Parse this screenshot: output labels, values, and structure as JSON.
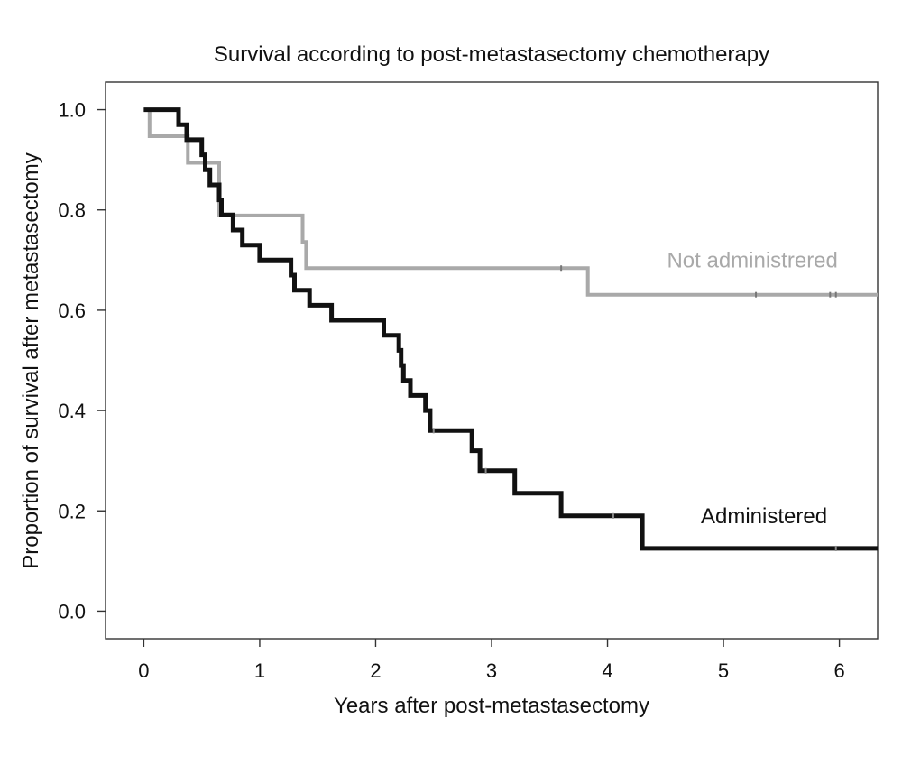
{
  "chart_data": {
    "type": "line",
    "title": "Survival according to post-metastasectomy chemotherapy",
    "xlabel": "Years after post-metastasectomy",
    "ylabel": "Proportion of survival after metastasectomy",
    "xlim": [
      -0.33,
      6.33
    ],
    "ylim": [
      -0.055,
      1.055
    ],
    "x_ticks": [
      0,
      1,
      2,
      3,
      4,
      5,
      6
    ],
    "y_ticks": [
      0.0,
      0.2,
      0.4,
      0.6,
      0.8,
      1.0
    ],
    "x_tick_labels": [
      "0",
      "1",
      "2",
      "3",
      "4",
      "5",
      "6"
    ],
    "y_tick_labels": [
      "0.0",
      "0.2",
      "0.4",
      "0.6",
      "0.8",
      "1.0"
    ],
    "grid": false,
    "series": [
      {
        "name": "Not administrered",
        "color": "#a9a9a9",
        "label_at": [
          5.25,
          0.685
        ],
        "points": [
          [
            0.0,
            1.0
          ],
          [
            0.05,
            1.0
          ],
          [
            0.05,
            0.947
          ],
          [
            0.38,
            0.947
          ],
          [
            0.38,
            0.894
          ],
          [
            0.52,
            0.894
          ],
          [
            0.52,
            0.894
          ],
          [
            0.65,
            0.894
          ],
          [
            0.65,
            0.789
          ],
          [
            1.37,
            0.789
          ],
          [
            1.37,
            0.736
          ],
          [
            1.4,
            0.736
          ],
          [
            1.4,
            0.684
          ],
          [
            3.83,
            0.684
          ],
          [
            3.83,
            0.631
          ],
          [
            6.33,
            0.631
          ]
        ],
        "censored": [
          [
            3.6,
            0.684
          ],
          [
            5.28,
            0.631
          ],
          [
            5.92,
            0.631
          ],
          [
            5.97,
            0.631
          ]
        ]
      },
      {
        "name": "Administered",
        "color": "#111111",
        "label_at": [
          5.35,
          0.175
        ],
        "points": [
          [
            0.0,
            1.0
          ],
          [
            0.3,
            1.0
          ],
          [
            0.3,
            0.97
          ],
          [
            0.37,
            0.97
          ],
          [
            0.37,
            0.94
          ],
          [
            0.5,
            0.94
          ],
          [
            0.5,
            0.91
          ],
          [
            0.53,
            0.91
          ],
          [
            0.53,
            0.88
          ],
          [
            0.57,
            0.88
          ],
          [
            0.57,
            0.85
          ],
          [
            0.65,
            0.85
          ],
          [
            0.65,
            0.82
          ],
          [
            0.67,
            0.82
          ],
          [
            0.67,
            0.79
          ],
          [
            0.77,
            0.79
          ],
          [
            0.77,
            0.76
          ],
          [
            0.85,
            0.76
          ],
          [
            0.85,
            0.73
          ],
          [
            1.0,
            0.73
          ],
          [
            1.0,
            0.7
          ],
          [
            1.27,
            0.7
          ],
          [
            1.27,
            0.67
          ],
          [
            1.3,
            0.67
          ],
          [
            1.3,
            0.64
          ],
          [
            1.43,
            0.64
          ],
          [
            1.43,
            0.61
          ],
          [
            1.62,
            0.61
          ],
          [
            1.62,
            0.58
          ],
          [
            2.07,
            0.58
          ],
          [
            2.07,
            0.55
          ],
          [
            2.2,
            0.55
          ],
          [
            2.2,
            0.52
          ],
          [
            2.22,
            0.52
          ],
          [
            2.22,
            0.49
          ],
          [
            2.24,
            0.49
          ],
          [
            2.24,
            0.46
          ],
          [
            2.3,
            0.46
          ],
          [
            2.3,
            0.43
          ],
          [
            2.43,
            0.43
          ],
          [
            2.43,
            0.4
          ],
          [
            2.47,
            0.4
          ],
          [
            2.47,
            0.36
          ],
          [
            2.83,
            0.36
          ],
          [
            2.83,
            0.32
          ],
          [
            2.9,
            0.32
          ],
          [
            2.9,
            0.28
          ],
          [
            3.2,
            0.28
          ],
          [
            3.2,
            0.235
          ],
          [
            3.6,
            0.235
          ],
          [
            3.6,
            0.19
          ],
          [
            4.3,
            0.19
          ],
          [
            4.3,
            0.125
          ],
          [
            6.33,
            0.125
          ]
        ],
        "censored": [
          [
            2.5,
            0.36
          ],
          [
            2.95,
            0.28
          ],
          [
            4.05,
            0.19
          ],
          [
            5.97,
            0.125
          ]
        ]
      }
    ]
  }
}
